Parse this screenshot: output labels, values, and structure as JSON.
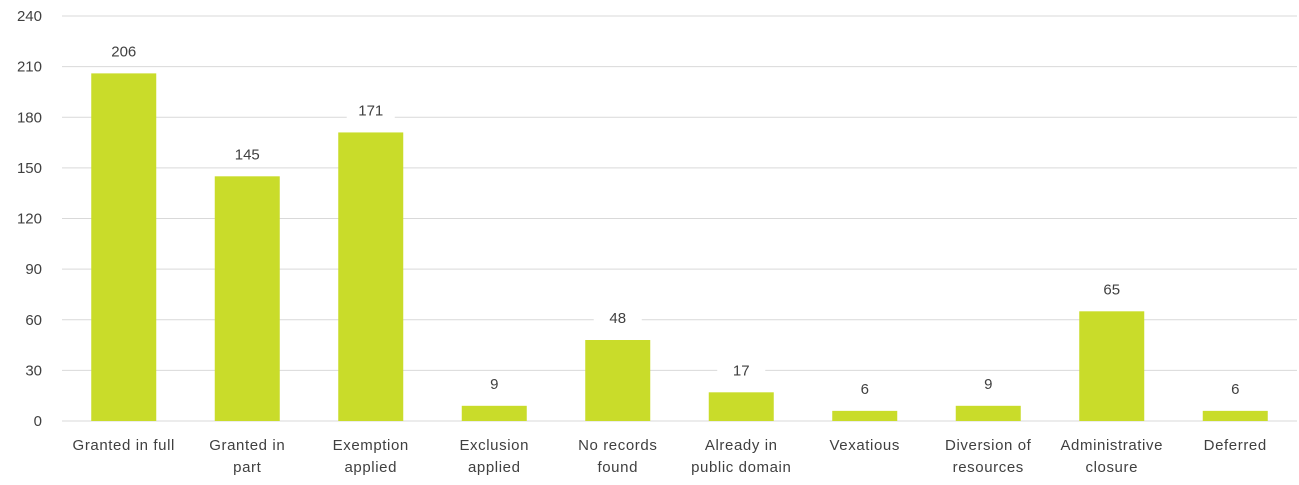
{
  "chart_data": {
    "type": "bar",
    "categories": [
      [
        "Granted in full"
      ],
      [
        "Granted in",
        "part"
      ],
      [
        "Exemption",
        "applied"
      ],
      [
        "Exclusion",
        "applied"
      ],
      [
        "No records",
        "found"
      ],
      [
        "Already in",
        "public domain"
      ],
      [
        "Vexatious"
      ],
      [
        "Diversion of",
        "resources"
      ],
      [
        "Administrative",
        "closure"
      ],
      [
        "Deferred"
      ]
    ],
    "values": [
      206,
      145,
      171,
      9,
      48,
      17,
      6,
      9,
      65,
      6
    ],
    "yticks": [
      "0",
      "30",
      "60",
      "90",
      "120",
      "150",
      "180",
      "210",
      "240"
    ],
    "ylim": [
      0,
      240
    ],
    "grid": true,
    "data_labels": true,
    "bar_color": "#c9dc2a",
    "grid_color": "#d9d9d9",
    "text_color": "#404040",
    "title": "",
    "xlabel": "",
    "ylabel": ""
  }
}
